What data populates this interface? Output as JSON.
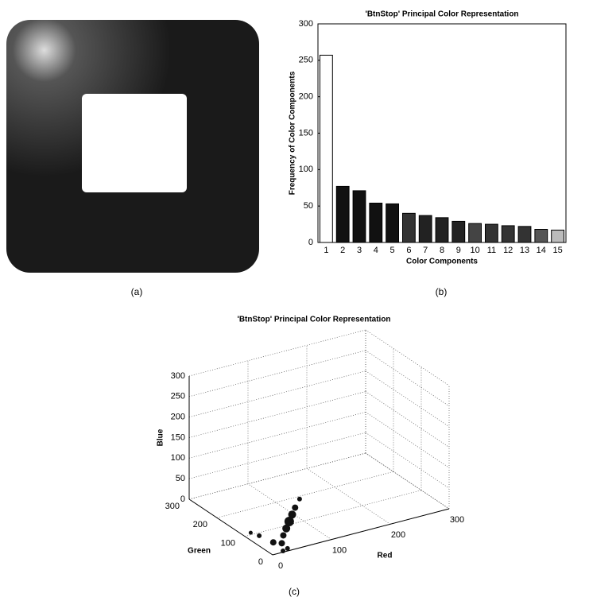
{
  "chart_data": [
    {
      "type": "bar",
      "title": "'BtnStop' Principal Color Representation",
      "x_label": "Color Components",
      "y_label": "Frequency of Color Components",
      "categories": [
        "1",
        "2",
        "3",
        "4",
        "5",
        "6",
        "7",
        "8",
        "9",
        "10",
        "11",
        "12",
        "13",
        "14",
        "15"
      ],
      "values": [
        257,
        77,
        71,
        54,
        53,
        40,
        37,
        34,
        29,
        26,
        25,
        23,
        22,
        18,
        17
      ],
      "colors": [
        "#ffffff",
        "#111111",
        "#111111",
        "#111111",
        "#111111",
        "#333333",
        "#222222",
        "#222222",
        "#222222",
        "#444444",
        "#333333",
        "#333333",
        "#333333",
        "#555555",
        "#bbbbbb"
      ],
      "ylim": [
        0,
        300
      ],
      "yticks": [
        0,
        50,
        100,
        150,
        200,
        250,
        300
      ]
    },
    {
      "type": "scatter3d",
      "title": "'BtnStop' Principal Color Representation",
      "x_label": "Red",
      "y_label": "Green",
      "z_label": "Blue",
      "red": [
        60,
        50,
        45,
        40,
        35,
        30,
        25,
        20,
        15,
        10,
        30,
        20
      ],
      "green": [
        30,
        25,
        25,
        25,
        25,
        25,
        20,
        40,
        80,
        100,
        10,
        5
      ],
      "blue": [
        100,
        85,
        70,
        55,
        40,
        25,
        10,
        5,
        5,
        5,
        0,
        0
      ],
      "sizes": [
        3,
        4,
        5,
        6,
        5,
        4,
        4,
        4,
        3,
        2.5,
        3,
        3
      ],
      "color": "#111111",
      "xlim": [
        0,
        300
      ],
      "xticks": [
        0,
        100,
        200,
        300
      ],
      "ylim": [
        0,
        300
      ],
      "yticks": [
        0,
        100,
        200,
        300
      ],
      "zlim": [
        0,
        300
      ],
      "zticks": [
        0,
        50,
        100,
        150,
        200,
        250,
        300
      ]
    }
  ],
  "captions": [
    "(a)",
    "(b)",
    "(c)"
  ]
}
